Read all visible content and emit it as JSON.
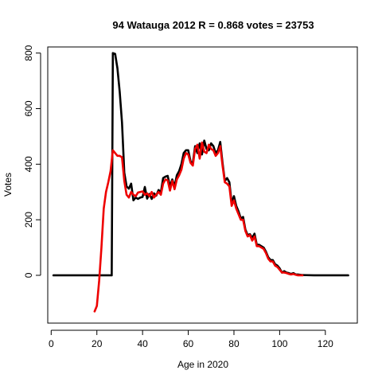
{
  "chart_data": {
    "type": "line",
    "title": "94 Watauga 2012 R = 0.868 votes = 23753",
    "xlabel": "Age in 2020",
    "ylabel": "Votes",
    "xlim": [
      -1.5,
      134
    ],
    "ylim": [
      -172,
      822
    ],
    "x_ticks": [
      0,
      20,
      40,
      60,
      80,
      100,
      120
    ],
    "y_ticks": [
      0,
      200,
      400,
      600,
      800
    ],
    "grid": false,
    "colors": {
      "black_series": "#000000",
      "red_series": "#ee0000"
    },
    "series": [
      {
        "name": "black",
        "color": "#000000",
        "points": [
          [
            1,
            0
          ],
          [
            5,
            0
          ],
          [
            10,
            0
          ],
          [
            15,
            0
          ],
          [
            20,
            0
          ],
          [
            25,
            0
          ],
          [
            26.5,
            0
          ],
          [
            27,
            800
          ],
          [
            28,
            797
          ],
          [
            29,
            745
          ],
          [
            30,
            660
          ],
          [
            31,
            550
          ],
          [
            32,
            370
          ],
          [
            33,
            320
          ],
          [
            34,
            312
          ],
          [
            35,
            330
          ],
          [
            36,
            270
          ],
          [
            37,
            280
          ],
          [
            38,
            275
          ],
          [
            39,
            280
          ],
          [
            40,
            282
          ],
          [
            41,
            318
          ],
          [
            42,
            276
          ],
          [
            43,
            293
          ],
          [
            44,
            275
          ],
          [
            45,
            295
          ],
          [
            46,
            287
          ],
          [
            47,
            307
          ],
          [
            48,
            298
          ],
          [
            49,
            350
          ],
          [
            50,
            355
          ],
          [
            51,
            358
          ],
          [
            52,
            320
          ],
          [
            53,
            345
          ],
          [
            54,
            320
          ],
          [
            55,
            360
          ],
          [
            56,
            375
          ],
          [
            57,
            400
          ],
          [
            58,
            440
          ],
          [
            59,
            450
          ],
          [
            60,
            450
          ],
          [
            61,
            410
          ],
          [
            62,
            405
          ],
          [
            63,
            465
          ],
          [
            64,
            440
          ],
          [
            65,
            475
          ],
          [
            66,
            435
          ],
          [
            67,
            485
          ],
          [
            68,
            455
          ],
          [
            69,
            450
          ],
          [
            70,
            475
          ],
          [
            71,
            465
          ],
          [
            72,
            440
          ],
          [
            73,
            450
          ],
          [
            74,
            480
          ],
          [
            75,
            405
          ],
          [
            76,
            340
          ],
          [
            77,
            350
          ],
          [
            78,
            335
          ],
          [
            79,
            260
          ],
          [
            80,
            285
          ],
          [
            81,
            250
          ],
          [
            82,
            230
          ],
          [
            83,
            205
          ],
          [
            84,
            210
          ],
          [
            85,
            165
          ],
          [
            86,
            145
          ],
          [
            87,
            148
          ],
          [
            88,
            135
          ],
          [
            89,
            150
          ],
          [
            90,
            110
          ],
          [
            91,
            110
          ],
          [
            92,
            105
          ],
          [
            93,
            100
          ],
          [
            94,
            85
          ],
          [
            95,
            65
          ],
          [
            96,
            55
          ],
          [
            97,
            55
          ],
          [
            98,
            40
          ],
          [
            99,
            35
          ],
          [
            100,
            25
          ],
          [
            101,
            10
          ],
          [
            102,
            15
          ],
          [
            103,
            10
          ],
          [
            104,
            8
          ],
          [
            105,
            5
          ],
          [
            106,
            8
          ],
          [
            107,
            3
          ],
          [
            108,
            3
          ],
          [
            109,
            2
          ],
          [
            110,
            1
          ],
          [
            115,
            0
          ],
          [
            120,
            0
          ],
          [
            125,
            0
          ],
          [
            130,
            0
          ]
        ]
      },
      {
        "name": "red",
        "color": "#ee0000",
        "points": [
          [
            19,
            -130
          ],
          [
            20,
            -110
          ],
          [
            21,
            -20
          ],
          [
            22,
            100
          ],
          [
            23,
            240
          ],
          [
            24,
            300
          ],
          [
            25,
            335
          ],
          [
            26,
            375
          ],
          [
            27,
            450
          ],
          [
            28,
            440
          ],
          [
            29,
            430
          ],
          [
            30,
            430
          ],
          [
            31,
            425
          ],
          [
            32,
            340
          ],
          [
            33,
            290
          ],
          [
            34,
            280
          ],
          [
            35,
            300
          ],
          [
            36,
            290
          ],
          [
            37,
            285
          ],
          [
            38,
            298
          ],
          [
            39,
            300
          ],
          [
            40,
            302
          ],
          [
            41,
            290
          ],
          [
            42,
            295
          ],
          [
            43,
            285
          ],
          [
            44,
            300
          ],
          [
            45,
            280
          ],
          [
            46,
            290
          ],
          [
            47,
            300
          ],
          [
            48,
            290
          ],
          [
            49,
            330
          ],
          [
            50,
            345
          ],
          [
            51,
            342
          ],
          [
            52,
            305
          ],
          [
            53,
            340
          ],
          [
            54,
            310
          ],
          [
            55,
            345
          ],
          [
            56,
            360
          ],
          [
            57,
            380
          ],
          [
            58,
            420
          ],
          [
            59,
            440
          ],
          [
            60,
            435
          ],
          [
            61,
            405
          ],
          [
            62,
            395
          ],
          [
            63,
            455
          ],
          [
            64,
            470
          ],
          [
            65,
            420
          ],
          [
            66,
            478
          ],
          [
            67,
            445
          ],
          [
            68,
            440
          ],
          [
            69,
            470
          ],
          [
            70,
            455
          ],
          [
            71,
            450
          ],
          [
            72,
            430
          ],
          [
            73,
            440
          ],
          [
            74,
            465
          ],
          [
            75,
            395
          ],
          [
            76,
            335
          ],
          [
            77,
            330
          ],
          [
            78,
            320
          ],
          [
            79,
            250
          ],
          [
            80,
            270
          ],
          [
            81,
            240
          ],
          [
            82,
            220
          ],
          [
            83,
            200
          ],
          [
            84,
            200
          ],
          [
            85,
            160
          ],
          [
            86,
            140
          ],
          [
            87,
            145
          ],
          [
            88,
            125
          ],
          [
            89,
            140
          ],
          [
            90,
            105
          ],
          [
            91,
            105
          ],
          [
            92,
            100
          ],
          [
            93,
            95
          ],
          [
            94,
            80
          ],
          [
            95,
            60
          ],
          [
            96,
            50
          ],
          [
            97,
            50
          ],
          [
            98,
            35
          ],
          [
            99,
            30
          ],
          [
            100,
            20
          ],
          [
            101,
            10
          ],
          [
            102,
            10
          ],
          [
            103,
            8
          ],
          [
            104,
            5
          ],
          [
            105,
            3
          ],
          [
            106,
            5
          ],
          [
            107,
            2
          ],
          [
            108,
            0
          ],
          [
            109,
            0
          ],
          [
            110,
            0
          ]
        ]
      }
    ]
  }
}
